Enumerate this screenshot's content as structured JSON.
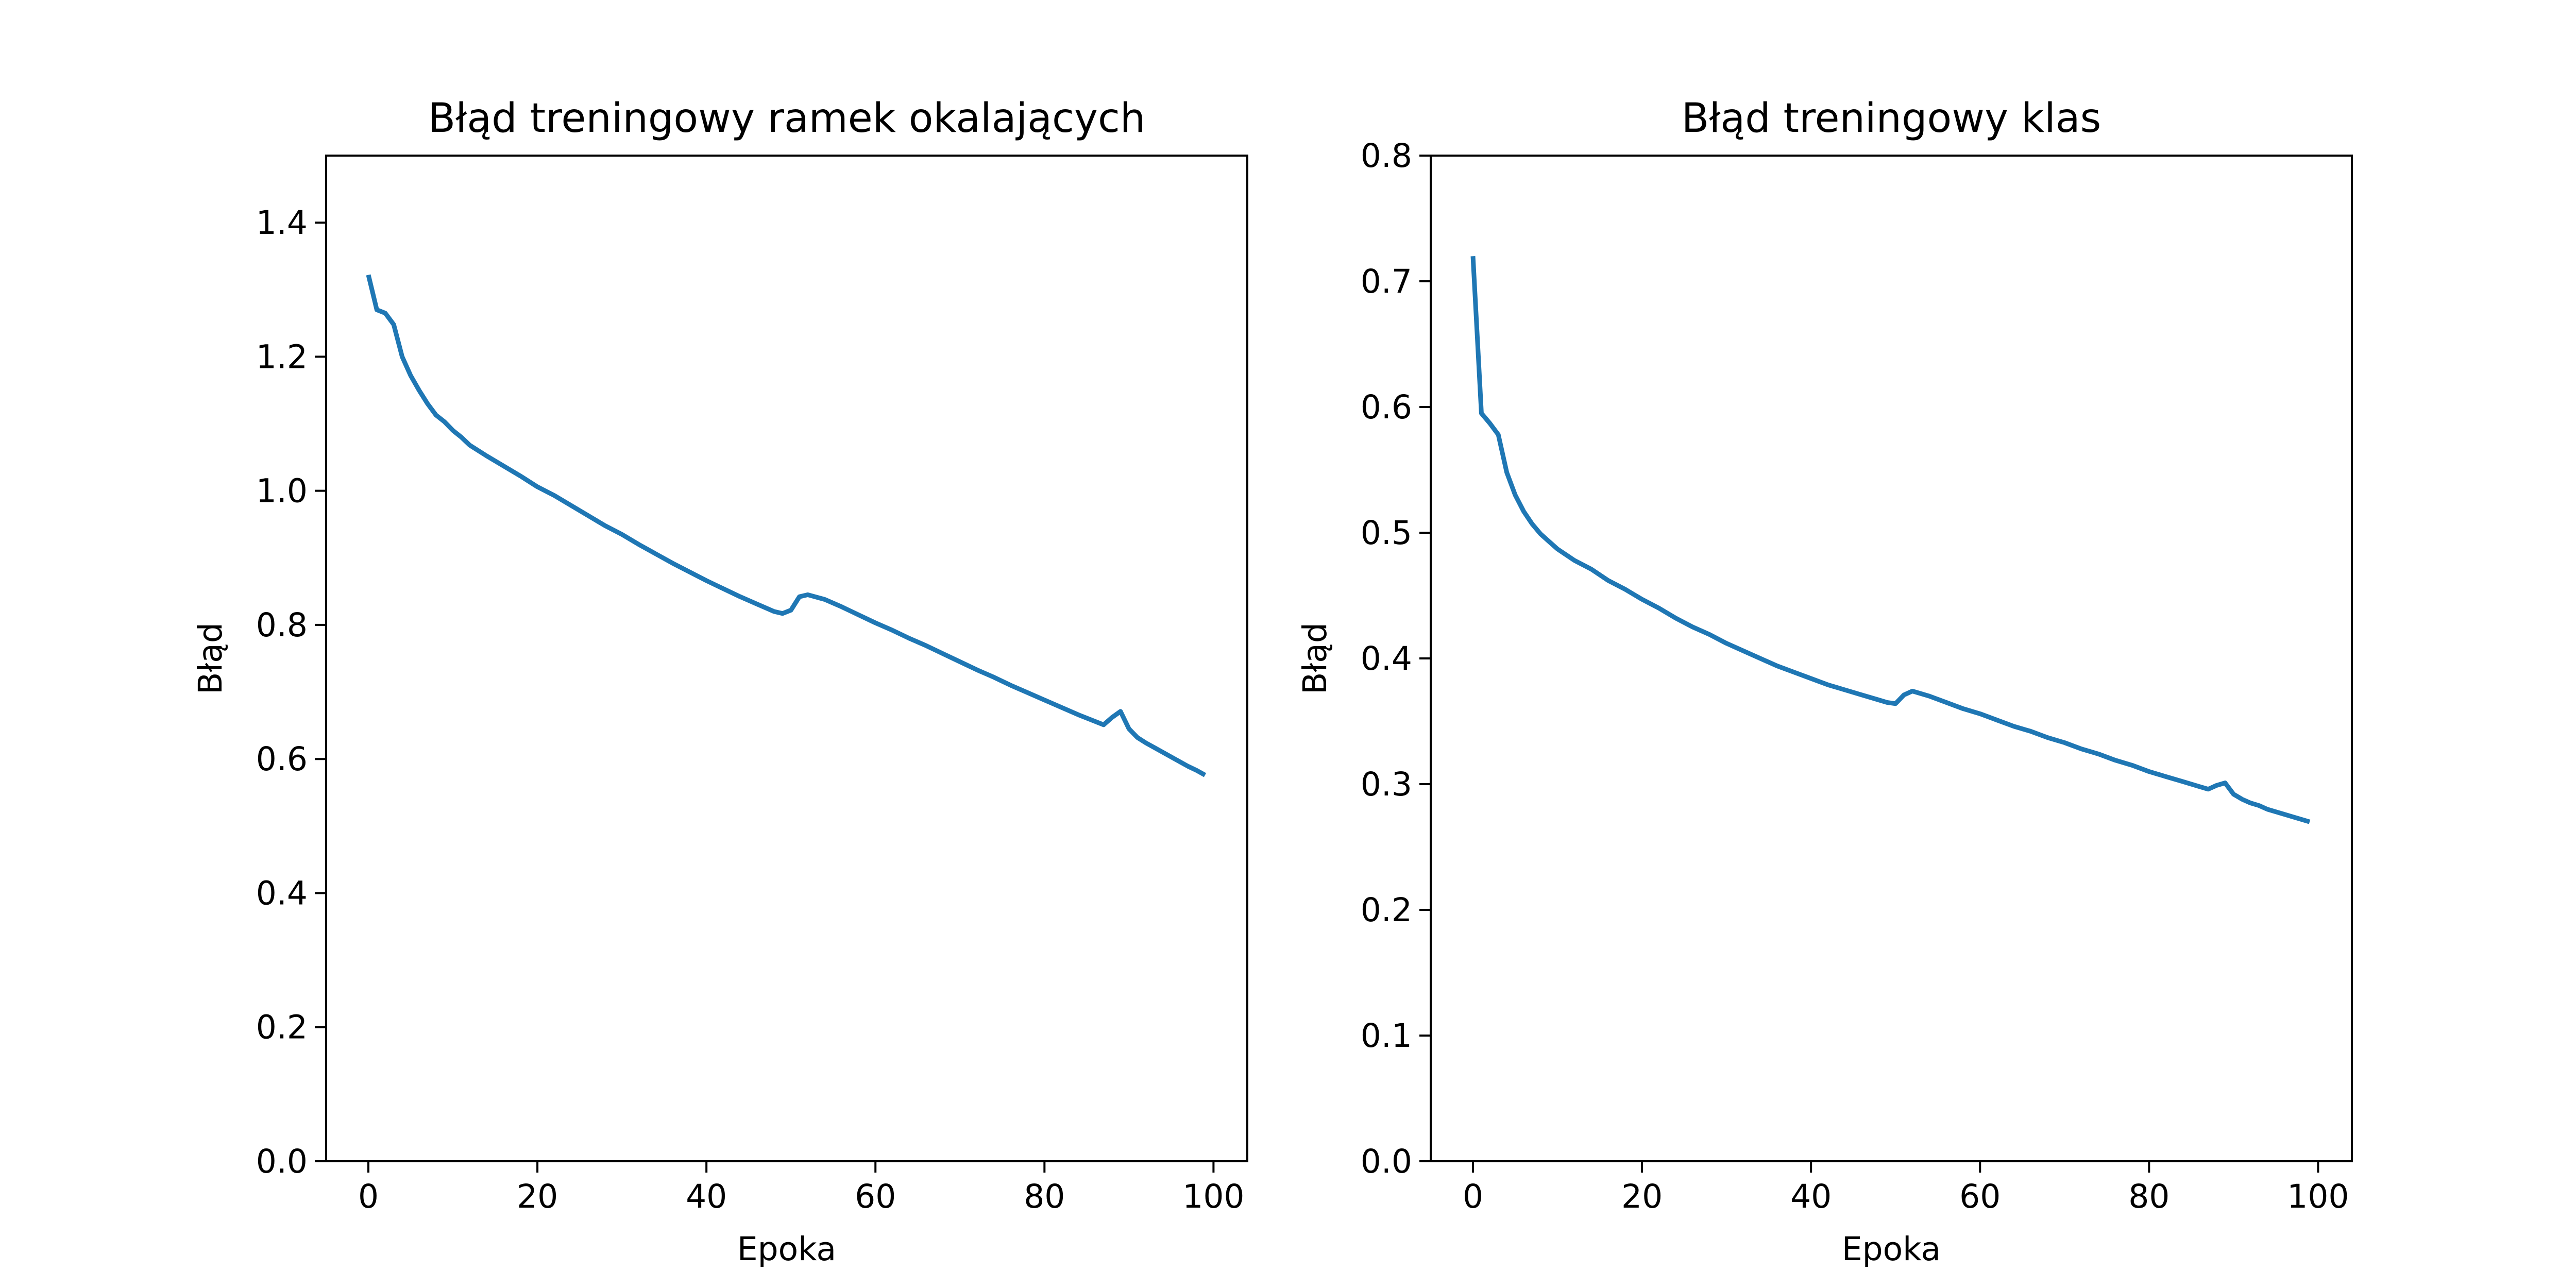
{
  "chart_data": [
    {
      "type": "line",
      "title": "Błąd treningowy ramek okalających",
      "xlabel": "Epoka",
      "ylabel": "Błąd",
      "xlim": [
        -5,
        104
      ],
      "ylim": [
        0,
        1.5
      ],
      "xticks": [
        0,
        20,
        40,
        60,
        80,
        100
      ],
      "xtick_labels": [
        "0",
        "20",
        "40",
        "60",
        "80",
        "100"
      ],
      "yticks": [
        0,
        0.2,
        0.4,
        0.6,
        0.8,
        1.0,
        1.2,
        1.4
      ],
      "ytick_labels": [
        "0.0",
        "0.2",
        "0.4",
        "0.6",
        "0.8",
        "1.0",
        "1.2",
        "1.4"
      ],
      "grid": false,
      "series": [
        {
          "color": "#1f77b4",
          "points": [
            [
              0,
              1.322
            ],
            [
              1,
              1.27
            ],
            [
              2,
              1.265
            ],
            [
              3,
              1.248
            ],
            [
              4,
              1.2
            ],
            [
              5,
              1.172
            ],
            [
              6,
              1.15
            ],
            [
              7,
              1.13
            ],
            [
              8,
              1.113
            ],
            [
              9,
              1.103
            ],
            [
              10,
              1.09
            ],
            [
              11,
              1.08
            ],
            [
              12,
              1.068
            ],
            [
              14,
              1.052
            ],
            [
              16,
              1.037
            ],
            [
              18,
              1.022
            ],
            [
              20,
              1.006
            ],
            [
              22,
              0.993
            ],
            [
              24,
              0.978
            ],
            [
              26,
              0.963
            ],
            [
              28,
              0.948
            ],
            [
              30,
              0.935
            ],
            [
              32,
              0.92
            ],
            [
              34,
              0.906
            ],
            [
              36,
              0.892
            ],
            [
              38,
              0.879
            ],
            [
              40,
              0.866
            ],
            [
              42,
              0.854
            ],
            [
              44,
              0.842
            ],
            [
              46,
              0.831
            ],
            [
              48,
              0.82
            ],
            [
              49,
              0.817
            ],
            [
              50,
              0.822
            ],
            [
              51,
              0.842
            ],
            [
              52,
              0.845
            ],
            [
              54,
              0.838
            ],
            [
              56,
              0.827
            ],
            [
              58,
              0.815
            ],
            [
              60,
              0.803
            ],
            [
              62,
              0.792
            ],
            [
              64,
              0.78
            ],
            [
              66,
              0.769
            ],
            [
              68,
              0.757
            ],
            [
              70,
              0.745
            ],
            [
              72,
              0.733
            ],
            [
              74,
              0.722
            ],
            [
              76,
              0.71
            ],
            [
              78,
              0.699
            ],
            [
              80,
              0.688
            ],
            [
              82,
              0.677
            ],
            [
              84,
              0.666
            ],
            [
              86,
              0.656
            ],
            [
              87,
              0.651
            ],
            [
              88,
              0.662
            ],
            [
              89,
              0.671
            ],
            [
              90,
              0.645
            ],
            [
              91,
              0.632
            ],
            [
              92,
              0.624
            ],
            [
              93,
              0.617
            ],
            [
              94,
              0.61
            ],
            [
              95,
              0.603
            ],
            [
              96,
              0.596
            ],
            [
              97,
              0.589
            ],
            [
              98,
              0.583
            ],
            [
              99,
              0.576
            ]
          ]
        }
      ]
    },
    {
      "type": "line",
      "title": "Błąd treningowy klas",
      "xlabel": "Epoka",
      "ylabel": "Błąd",
      "xlim": [
        -5,
        104
      ],
      "ylim": [
        0,
        0.8
      ],
      "xticks": [
        0,
        20,
        40,
        60,
        80,
        100
      ],
      "xtick_labels": [
        "0",
        "20",
        "40",
        "60",
        "80",
        "100"
      ],
      "yticks": [
        0,
        0.1,
        0.2,
        0.3,
        0.4,
        0.5,
        0.6,
        0.7,
        0.8
      ],
      "ytick_labels": [
        "0.0",
        "0.1",
        "0.2",
        "0.3",
        "0.4",
        "0.5",
        "0.6",
        "0.7",
        "0.8"
      ],
      "grid": false,
      "series": [
        {
          "color": "#1f77b4",
          "points": [
            [
              0,
              0.72
            ],
            [
              1,
              0.595
            ],
            [
              2,
              0.587
            ],
            [
              3,
              0.578
            ],
            [
              4,
              0.548
            ],
            [
              5,
              0.53
            ],
            [
              6,
              0.517
            ],
            [
              7,
              0.507
            ],
            [
              8,
              0.499
            ],
            [
              9,
              0.493
            ],
            [
              10,
              0.487
            ],
            [
              12,
              0.478
            ],
            [
              14,
              0.471
            ],
            [
              16,
              0.462
            ],
            [
              18,
              0.455
            ],
            [
              20,
              0.447
            ],
            [
              22,
              0.44
            ],
            [
              24,
              0.432
            ],
            [
              26,
              0.425
            ],
            [
              28,
              0.419
            ],
            [
              30,
              0.412
            ],
            [
              32,
              0.406
            ],
            [
              34,
              0.4
            ],
            [
              36,
              0.394
            ],
            [
              38,
              0.389
            ],
            [
              40,
              0.384
            ],
            [
              42,
              0.379
            ],
            [
              44,
              0.375
            ],
            [
              46,
              0.371
            ],
            [
              48,
              0.367
            ],
            [
              49,
              0.365
            ],
            [
              50,
              0.364
            ],
            [
              51,
              0.371
            ],
            [
              52,
              0.374
            ],
            [
              54,
              0.37
            ],
            [
              56,
              0.365
            ],
            [
              58,
              0.36
            ],
            [
              60,
              0.356
            ],
            [
              62,
              0.351
            ],
            [
              64,
              0.346
            ],
            [
              66,
              0.342
            ],
            [
              68,
              0.337
            ],
            [
              70,
              0.333
            ],
            [
              72,
              0.328
            ],
            [
              74,
              0.324
            ],
            [
              76,
              0.319
            ],
            [
              78,
              0.315
            ],
            [
              80,
              0.31
            ],
            [
              82,
              0.306
            ],
            [
              84,
              0.302
            ],
            [
              86,
              0.298
            ],
            [
              87,
              0.296
            ],
            [
              88,
              0.299
            ],
            [
              89,
              0.301
            ],
            [
              90,
              0.292
            ],
            [
              91,
              0.288
            ],
            [
              92,
              0.285
            ],
            [
              93,
              0.283
            ],
            [
              94,
              0.28
            ],
            [
              95,
              0.278
            ],
            [
              96,
              0.276
            ],
            [
              97,
              0.274
            ],
            [
              98,
              0.272
            ],
            [
              99,
              0.27
            ]
          ]
        }
      ]
    }
  ]
}
